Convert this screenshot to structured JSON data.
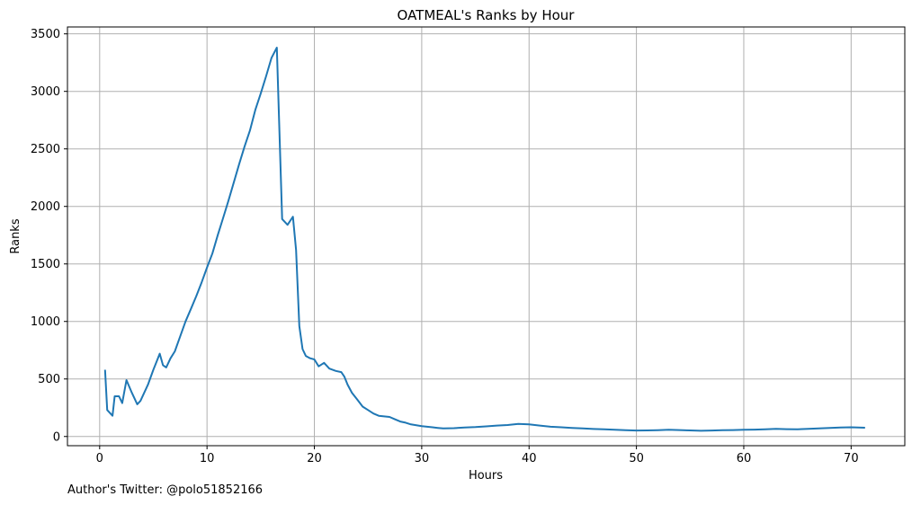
{
  "footnote": "Author's Twitter: @polo51852166",
  "chart_data": {
    "type": "line",
    "title": "OATMEAL's Ranks by Hour",
    "xlabel": "Hours",
    "ylabel": "Ranks",
    "xlim": [
      -3,
      75
    ],
    "ylim": [
      -80,
      3560
    ],
    "xticks": [
      0,
      10,
      20,
      30,
      40,
      50,
      60,
      70
    ],
    "yticks": [
      0,
      500,
      1000,
      1500,
      2000,
      2500,
      3000,
      3500
    ],
    "grid": true,
    "line_color": "#1f77b4",
    "series": [
      {
        "x": [
          0.5,
          0.7,
          1.2,
          1.4,
          1.8,
          2.1,
          2.5,
          3.0,
          3.5,
          3.8,
          4.5,
          5.0,
          5.3,
          5.6,
          5.9,
          6.2,
          6.6,
          7.0,
          7.5,
          8.0,
          8.5,
          9.0,
          9.5,
          10.0,
          10.5,
          11.0,
          11.5,
          12.0,
          12.5,
          13.0,
          13.5,
          14.0,
          14.5,
          15.0,
          15.5,
          16.0,
          16.5,
          17.0,
          17.5,
          18.0,
          18.3,
          18.6,
          18.9,
          19.2,
          19.6,
          20.0,
          20.4,
          20.9,
          21.4,
          22.0,
          22.5,
          22.8,
          23.1,
          23.5,
          24.0,
          24.5,
          25.0,
          25.5,
          26.0,
          26.5,
          27.0,
          27.5,
          28.0,
          28.5,
          29.0,
          30.0,
          31.0,
          31.5,
          32.0,
          33.0,
          34.0,
          35.0,
          36.0,
          37.0,
          38.0,
          39.0,
          40.0,
          41.0,
          42.0,
          43.0,
          44.0,
          45.0,
          46.0,
          47.0,
          48.0,
          49.0,
          50.0,
          51.0,
          52.0,
          53.0,
          54.0,
          55.0,
          56.0,
          57.0,
          58.0,
          59.0,
          60.0,
          61.0,
          62.0,
          63.0,
          64.0,
          65.0,
          66.0,
          67.0,
          68.0,
          69.0,
          70.0,
          71.3
        ],
        "y": [
          580,
          230,
          180,
          350,
          350,
          290,
          490,
          380,
          280,
          310,
          450,
          580,
          650,
          720,
          620,
          600,
          680,
          740,
          870,
          1000,
          1110,
          1220,
          1340,
          1470,
          1590,
          1750,
          1900,
          2050,
          2210,
          2370,
          2520,
          2660,
          2840,
          2980,
          3130,
          3290,
          3380,
          1890,
          1840,
          1910,
          1620,
          960,
          760,
          700,
          680,
          670,
          610,
          640,
          590,
          570,
          560,
          520,
          450,
          380,
          320,
          260,
          230,
          200,
          180,
          175,
          170,
          150,
          130,
          120,
          105,
          90,
          80,
          75,
          70,
          72,
          78,
          82,
          88,
          95,
          100,
          110,
          105,
          95,
          85,
          80,
          75,
          70,
          65,
          62,
          58,
          55,
          52,
          53,
          55,
          58,
          56,
          53,
          50,
          52,
          54,
          56,
          58,
          60,
          63,
          66,
          64,
          63,
          66,
          70,
          74,
          78,
          80,
          76
        ]
      }
    ]
  }
}
